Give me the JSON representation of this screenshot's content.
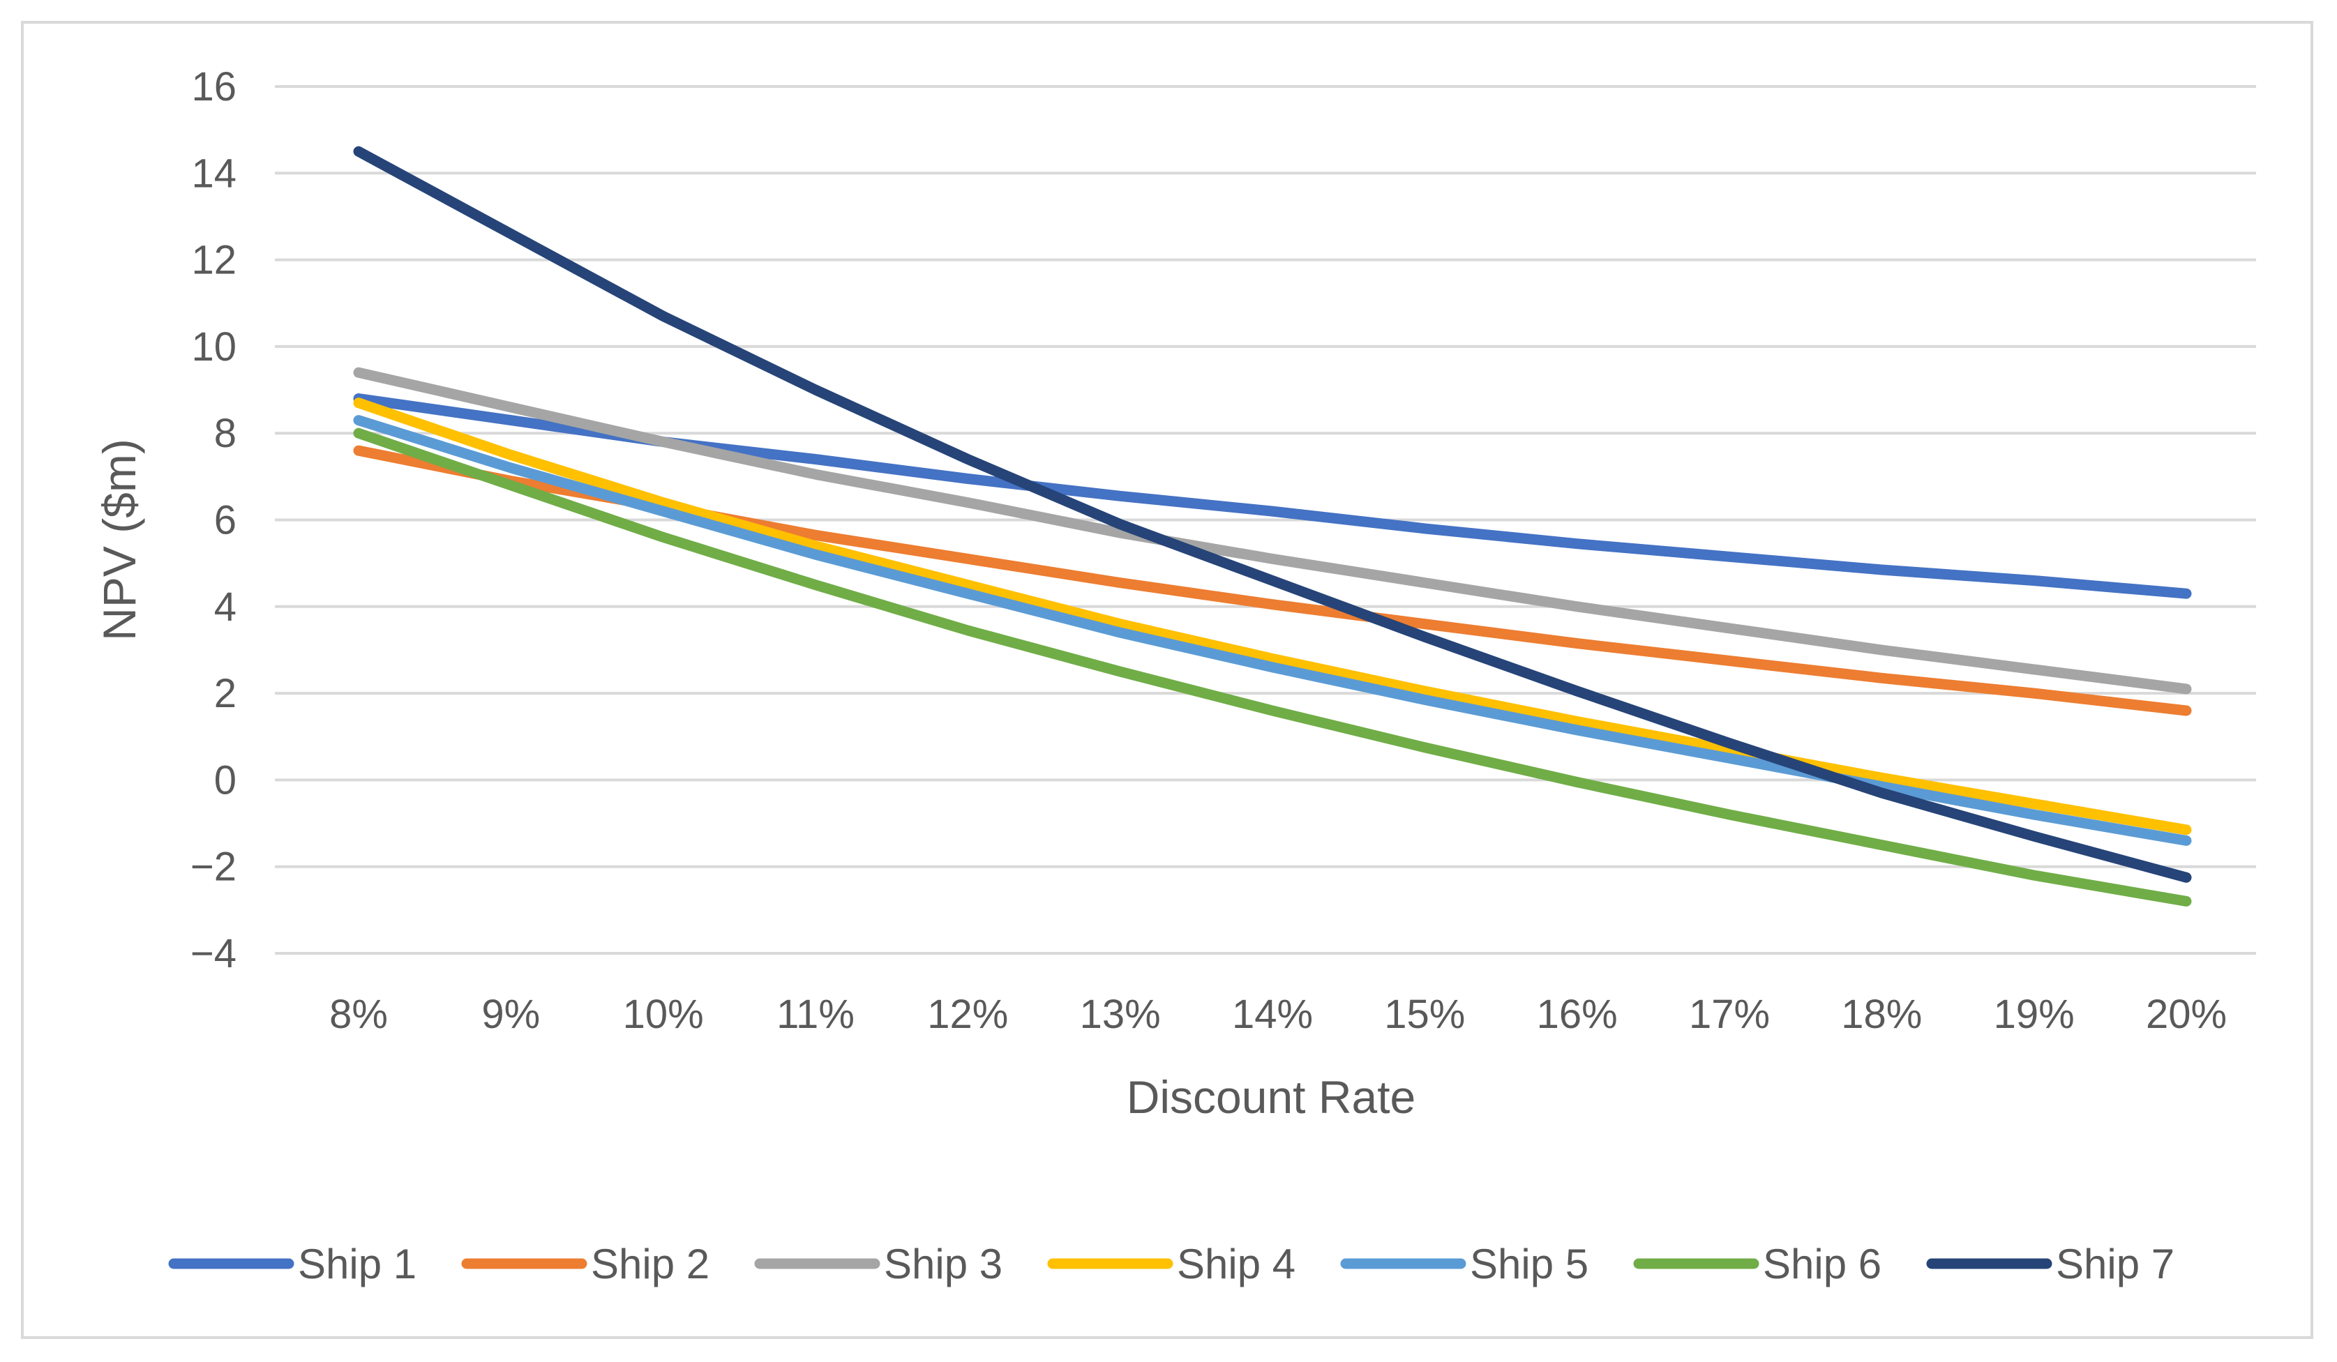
{
  "chart_data": {
    "type": "line",
    "title": "",
    "xlabel": "Discount Rate",
    "ylabel": "NPV ($m)",
    "x": [
      "8%",
      "9%",
      "10%",
      "11%",
      "12%",
      "13%",
      "14%",
      "15%",
      "16%",
      "17%",
      "18%",
      "19%",
      "20%"
    ],
    "ylim": [
      -4,
      16
    ],
    "yticks": [
      16,
      14,
      12,
      10,
      8,
      6,
      4,
      2,
      0,
      -2,
      -4
    ],
    "ytick_labels": [
      "16",
      "14",
      "12",
      "10",
      "8",
      "6",
      "4",
      "2",
      "0",
      "−2",
      "−4"
    ],
    "grid": true,
    "legend": "bottom",
    "series": [
      {
        "name": "Ship 1",
        "color": "#4472C4",
        "values": [
          8.8,
          8.3,
          7.8,
          7.4,
          6.95,
          6.55,
          6.2,
          5.8,
          5.45,
          5.15,
          4.85,
          4.6,
          4.3
        ]
      },
      {
        "name": "Ship 2",
        "color": "#ED7D31",
        "values": [
          7.6,
          6.9,
          6.3,
          5.65,
          5.1,
          4.55,
          4.05,
          3.6,
          3.15,
          2.75,
          2.35,
          2.0,
          1.6
        ]
      },
      {
        "name": "Ship 3",
        "color": "#A5A5A5",
        "values": [
          9.4,
          8.6,
          7.8,
          7.05,
          6.4,
          5.7,
          5.1,
          4.55,
          4.0,
          3.5,
          3.0,
          2.55,
          2.1
        ]
      },
      {
        "name": "Ship 4",
        "color": "#FFC000",
        "values": [
          8.7,
          7.5,
          6.4,
          5.4,
          4.5,
          3.6,
          2.8,
          2.05,
          1.35,
          0.7,
          0.05,
          -0.55,
          -1.15
        ]
      },
      {
        "name": "Ship 5",
        "color": "#5B9BD5",
        "values": [
          8.3,
          7.2,
          6.2,
          5.2,
          4.3,
          3.4,
          2.6,
          1.85,
          1.15,
          0.5,
          -0.15,
          -0.8,
          -1.4
        ]
      },
      {
        "name": "Ship 6",
        "color": "#70AD47",
        "values": [
          8.0,
          6.8,
          5.6,
          4.5,
          3.45,
          2.5,
          1.6,
          0.75,
          -0.05,
          -0.8,
          -1.5,
          -2.2,
          -2.8
        ]
      },
      {
        "name": "Ship 7",
        "color": "#264478",
        "values": [
          14.5,
          12.6,
          10.7,
          9.0,
          7.4,
          5.9,
          4.6,
          3.3,
          2.05,
          0.85,
          -0.3,
          -1.3,
          -2.25
        ]
      }
    ]
  }
}
